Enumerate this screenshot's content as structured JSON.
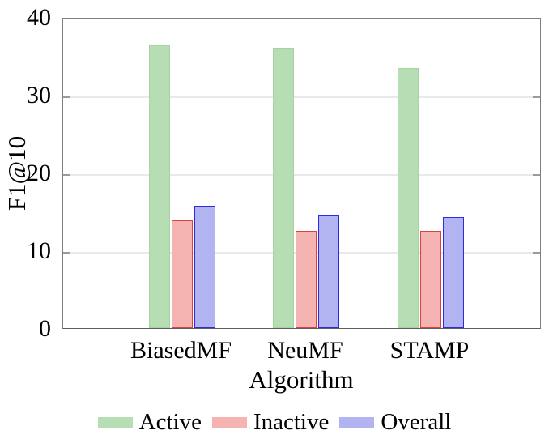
{
  "chart_data": {
    "type": "bar",
    "title": "",
    "xlabel": "Algorithm",
    "ylabel": "F1@10",
    "categories": [
      "BiasedMF",
      "NeuMF",
      "STAMP"
    ],
    "series": [
      {
        "name": "Active",
        "values": [
          36.4,
          36.0,
          33.4
        ],
        "fill": "#b6ddb4",
        "border": "#a5d4a1"
      },
      {
        "name": "Inactive",
        "values": [
          13.9,
          12.5,
          12.5
        ],
        "fill": "#f5b4b2",
        "border": "#dd413d"
      },
      {
        "name": "Overall",
        "values": [
          15.7,
          14.5,
          14.3
        ],
        "fill": "#b2b4f2",
        "border": "#2b2be0"
      }
    ],
    "ylim": [
      0,
      40
    ],
    "yticks": [
      0,
      10,
      20,
      30,
      40
    ],
    "grid": "horizontal",
    "gridline_values": [
      10,
      20,
      30
    ],
    "legend_position": "bottom-center",
    "colors": {
      "frame": "#808080",
      "bottom_axis": "#5e5e5e",
      "gridline": "#e9e9e9",
      "tick_mark": "#9a9a9a",
      "text": "#000000"
    }
  }
}
